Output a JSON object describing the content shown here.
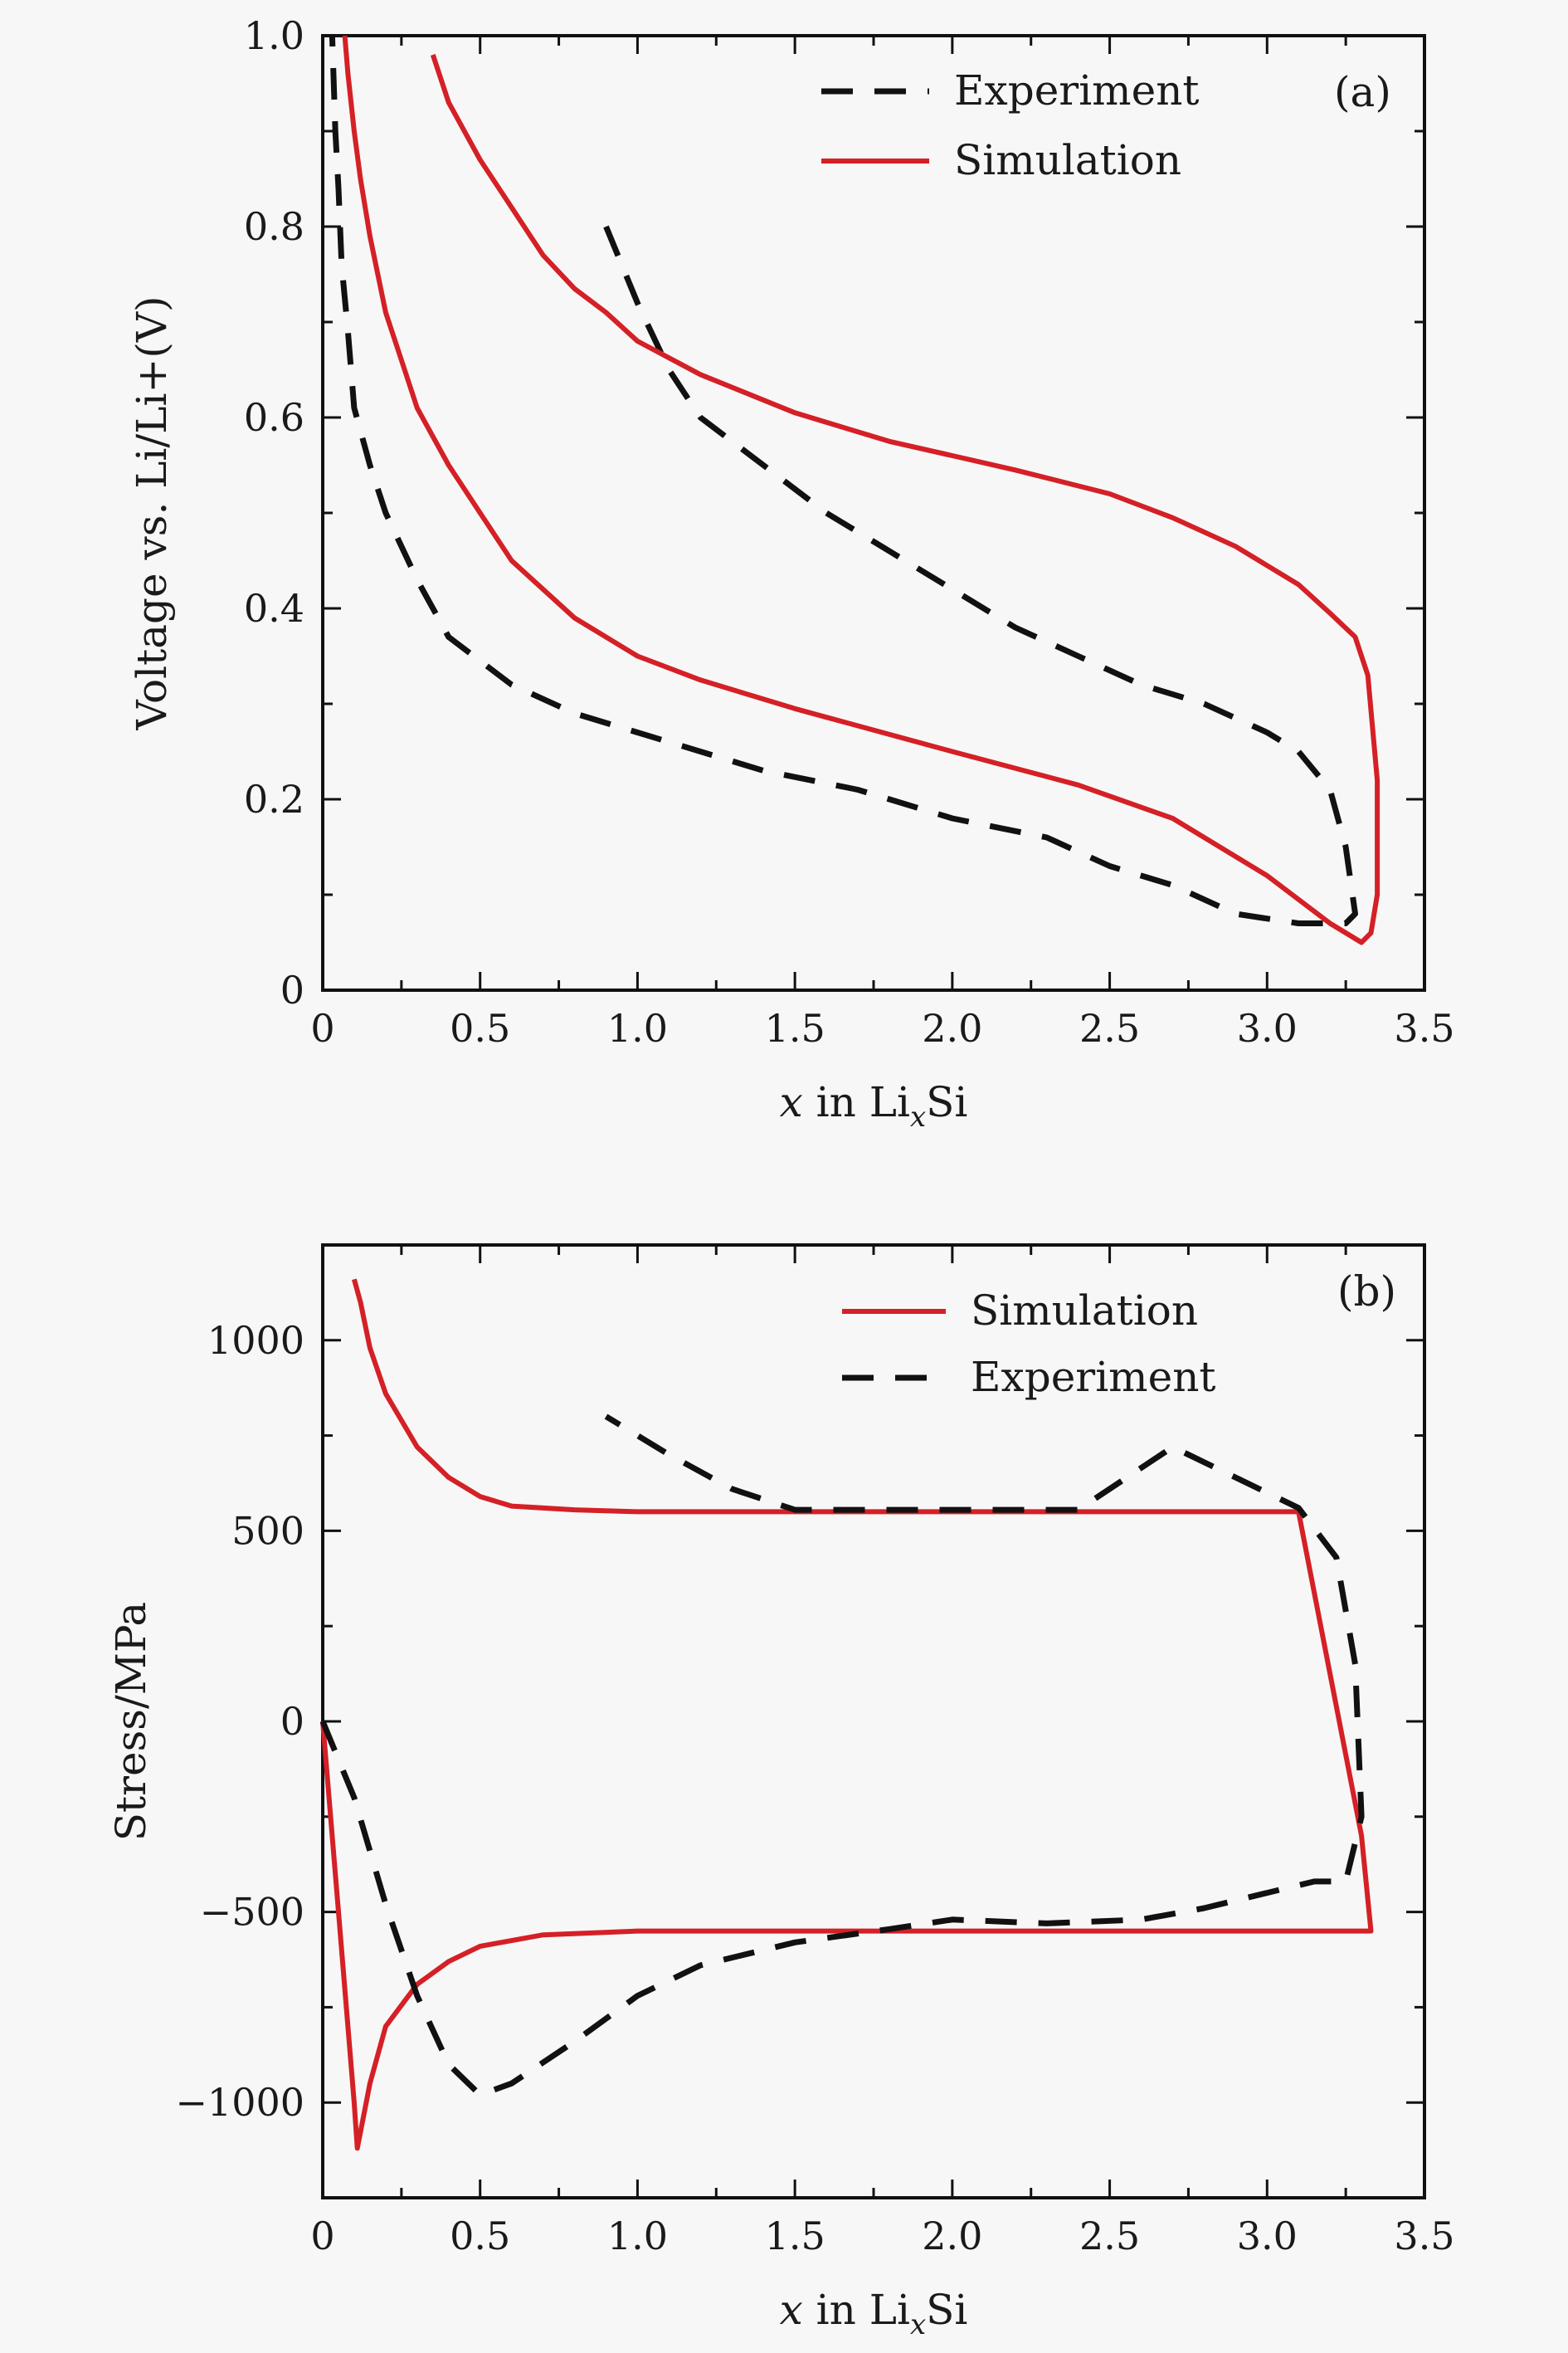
{
  "chart_data": [
    {
      "type": "line",
      "panel": "(a)",
      "xlabel": "x in LixSi",
      "xlabel_parts": {
        "var": "x",
        "mid": " in Li",
        "sub": "x",
        "end": "Si"
      },
      "ylabel": "Voltage vs. Li/Li+(V)",
      "xlim": [
        0,
        3.5
      ],
      "ylim": [
        0,
        1.0
      ],
      "xticks": [
        "0",
        "0.5",
        "1.0",
        "1.5",
        "2.0",
        "2.5",
        "3.0",
        "3.5"
      ],
      "xtick_values": [
        0,
        0.5,
        1.0,
        1.5,
        2.0,
        2.5,
        3.0,
        3.5
      ],
      "yticks": [
        "0",
        "0.2",
        "0.4",
        "0.6",
        "0.8",
        "1.0"
      ],
      "ytick_values": [
        0,
        0.2,
        0.4,
        0.6,
        0.8,
        1.0
      ],
      "legend_position": "top-right",
      "grid": false,
      "series": [
        {
          "name": "Experiment",
          "style": "dashed",
          "color": "#111111",
          "x": [
            0.9,
            1.0,
            1.1,
            1.2,
            1.4,
            1.6,
            1.8,
            2.0,
            2.2,
            2.4,
            2.6,
            2.8,
            3.0,
            3.1,
            3.2,
            3.25,
            3.28,
            3.25,
            3.1,
            2.9,
            2.7,
            2.5,
            2.3,
            2.0,
            1.7,
            1.4,
            1.1,
            0.8,
            0.6,
            0.4,
            0.3,
            0.2,
            0.15,
            0.1,
            0.08,
            0.06,
            0.05,
            0.04,
            0.03
          ],
          "y": [
            0.8,
            0.72,
            0.65,
            0.6,
            0.55,
            0.5,
            0.46,
            0.42,
            0.38,
            0.35,
            0.32,
            0.3,
            0.27,
            0.25,
            0.21,
            0.15,
            0.08,
            0.07,
            0.07,
            0.08,
            0.11,
            0.13,
            0.16,
            0.18,
            0.21,
            0.23,
            0.26,
            0.29,
            0.32,
            0.37,
            0.43,
            0.5,
            0.55,
            0.61,
            0.69,
            0.76,
            0.84,
            0.9,
            1.0
          ]
        },
        {
          "name": "Simulation",
          "style": "solid",
          "color": "#d42026",
          "x": [
            0.35,
            0.4,
            0.5,
            0.6,
            0.7,
            0.8,
            0.9,
            1.0,
            1.2,
            1.5,
            1.8,
            2.0,
            2.2,
            2.5,
            2.7,
            2.9,
            3.1,
            3.2,
            3.28,
            3.32,
            3.35,
            3.35,
            3.33,
            3.3,
            3.2,
            3.0,
            2.7,
            2.4,
            2.0,
            1.5,
            1.2,
            1.0,
            0.8,
            0.7,
            0.6,
            0.5,
            0.4,
            0.3,
            0.25,
            0.2,
            0.15,
            0.12,
            0.1,
            0.08,
            0.07
          ],
          "y": [
            0.98,
            0.93,
            0.87,
            0.82,
            0.77,
            0.735,
            0.71,
            0.68,
            0.645,
            0.605,
            0.575,
            0.56,
            0.545,
            0.52,
            0.495,
            0.465,
            0.425,
            0.395,
            0.37,
            0.33,
            0.22,
            0.1,
            0.06,
            0.05,
            0.07,
            0.12,
            0.18,
            0.215,
            0.25,
            0.295,
            0.325,
            0.35,
            0.39,
            0.42,
            0.45,
            0.5,
            0.55,
            0.61,
            0.66,
            0.71,
            0.79,
            0.85,
            0.9,
            0.96,
            1.0
          ]
        }
      ]
    },
    {
      "type": "line",
      "panel": "(b)",
      "xlabel": "x in LixSi",
      "xlabel_parts": {
        "var": "x",
        "mid": " in Li",
        "sub": "x",
        "end": "Si"
      },
      "ylabel": "Stress/MPa",
      "xlim": [
        0,
        3.5
      ],
      "ylim": [
        -1250,
        1250
      ],
      "xticks": [
        "0",
        "0.5",
        "1.0",
        "1.5",
        "2.0",
        "2.5",
        "3.0",
        "3.5"
      ],
      "xtick_values": [
        0,
        0.5,
        1.0,
        1.5,
        2.0,
        2.5,
        3.0,
        3.5
      ],
      "yticks": [
        "1000",
        "500",
        "0",
        "−500",
        "−1000"
      ],
      "ytick_values": [
        1000,
        500,
        0,
        -500,
        -1000
      ],
      "legend_position": "top-right",
      "grid": false,
      "series": [
        {
          "name": "Simulation",
          "style": "solid",
          "color": "#d42026",
          "x": [
            0,
            0.05,
            0.1,
            0.11,
            0.15,
            0.2,
            0.3,
            0.4,
            0.5,
            0.7,
            1.0,
            1.5,
            2.0,
            2.5,
            3.0,
            3.33,
            3.3,
            3.1,
            3.0,
            2.5,
            2.0,
            1.5,
            1.0,
            0.8,
            0.6,
            0.5,
            0.4,
            0.3,
            0.2,
            0.15,
            0.12,
            0.1
          ],
          "y": [
            0,
            -500,
            -1000,
            -1120,
            -950,
            -800,
            -690,
            -630,
            -590,
            -560,
            -550,
            -550,
            -550,
            -550,
            -550,
            -550,
            -300,
            550,
            550,
            550,
            550,
            550,
            550,
            555,
            565,
            590,
            640,
            720,
            860,
            980,
            1100,
            1160
          ]
        },
        {
          "name": "Experiment",
          "style": "dashed",
          "color": "#111111",
          "x": [
            0,
            0.1,
            0.2,
            0.3,
            0.4,
            0.5,
            0.6,
            0.8,
            1.0,
            1.2,
            1.5,
            1.8,
            2.0,
            2.3,
            2.6,
            2.8,
            3.0,
            3.15,
            3.25,
            3.3,
            3.28,
            3.22,
            3.1,
            2.9,
            2.7,
            2.4,
            2.0,
            1.7,
            1.5,
            1.3,
            1.1,
            0.9
          ],
          "y": [
            0,
            -200,
            -480,
            -720,
            -900,
            -980,
            -950,
            -840,
            -720,
            -640,
            -580,
            -545,
            -520,
            -530,
            -520,
            -490,
            -450,
            -420,
            -420,
            -250,
            150,
            430,
            560,
            640,
            720,
            555,
            555,
            555,
            555,
            610,
            700,
            800
          ]
        }
      ]
    }
  ]
}
